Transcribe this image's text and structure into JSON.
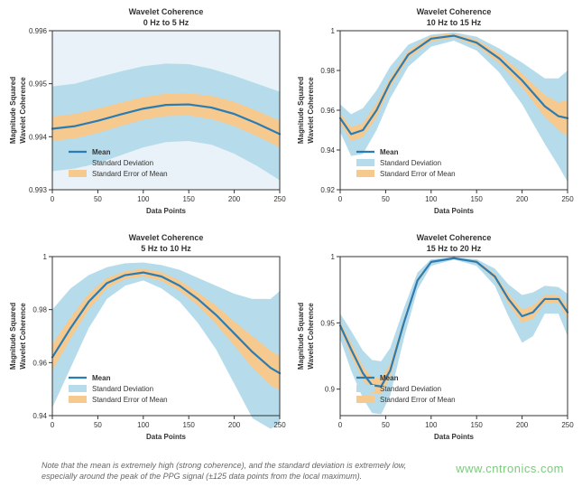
{
  "colors": {
    "plot_bg_tint": "#e8f2f8",
    "plot_bg_white": "#ffffff",
    "mean_line": "#2b7cb3",
    "std_fill": "#b6dceb",
    "sem_fill": "#f6c98f",
    "axis": "#333333",
    "grid": "none",
    "caption_text": "#666666",
    "watermark": "#7ec97e"
  },
  "caption": {
    "line1": "Note that the mean is extremely high (strong coherence), and the standard deviation is extremely low,",
    "line2": "especially around the peak of the PPG signal (±125 data points from the local maximum)."
  },
  "watermark": "www.cntronics.com",
  "common": {
    "xlabel": "Data Points",
    "ylabel_line1": "Magnitude Squared",
    "ylabel_line2": "Wavelet Coherence",
    "xlim": [
      0,
      250
    ],
    "xticks": [
      0,
      50,
      100,
      150,
      200,
      250
    ],
    "legend": {
      "mean": "Mean",
      "std": "Standard Deviation",
      "sem": "Standard Error of Mean"
    },
    "line_width_mean": 2.2,
    "fontsize_title": 9,
    "fontsize_axis_label": 8,
    "fontsize_tick": 8,
    "fontsize_legend": 8
  },
  "panels": [
    {
      "id": "p0_5",
      "title_line1": "Wavelet Coherence",
      "title_line2": "0 Hz to 5 Hz",
      "bg_tint": true,
      "ylim": [
        0.993,
        0.996
      ],
      "yticks": [
        0.993,
        0.994,
        0.995,
        0.996
      ],
      "yticklabels": [
        "0.993",
        "0.994",
        "0.995",
        "0.996"
      ],
      "legend_pos": "lower-inside",
      "x": [
        0,
        25,
        50,
        75,
        100,
        125,
        150,
        175,
        200,
        225,
        250
      ],
      "mean": [
        0.99415,
        0.9942,
        0.9943,
        0.99442,
        0.99453,
        0.9946,
        0.99461,
        0.99455,
        0.99443,
        0.99425,
        0.99405
      ],
      "std_lo": [
        0.99335,
        0.9934,
        0.9935,
        0.99365,
        0.9938,
        0.9939,
        0.99392,
        0.99385,
        0.99368,
        0.99345,
        0.99318
      ],
      "std_hi": [
        0.99495,
        0.995,
        0.99512,
        0.99523,
        0.99533,
        0.99538,
        0.99537,
        0.99528,
        0.99515,
        0.995,
        0.99485
      ],
      "sem_lo": [
        0.99392,
        0.99397,
        0.99407,
        0.9942,
        0.99432,
        0.99439,
        0.9944,
        0.99433,
        0.9942,
        0.99401,
        0.9938
      ],
      "sem_hi": [
        0.99438,
        0.99443,
        0.99453,
        0.99464,
        0.99475,
        0.99481,
        0.99482,
        0.99477,
        0.99466,
        0.99449,
        0.9943
      ]
    },
    {
      "id": "p10_15",
      "title_line1": "Wavelet Coherence",
      "title_line2": "10 Hz to 15 Hz",
      "bg_tint": false,
      "ylim": [
        0.92,
        1.0
      ],
      "yticks": [
        0.92,
        0.94,
        0.96,
        0.98,
        1.0
      ],
      "yticklabels": [
        "0.92",
        "0.94",
        "0.96",
        "0.98",
        "1"
      ],
      "legend_pos": "lower-inside",
      "x": [
        0,
        12,
        25,
        40,
        55,
        75,
        100,
        125,
        150,
        175,
        200,
        225,
        240,
        250
      ],
      "mean": [
        0.956,
        0.948,
        0.95,
        0.96,
        0.974,
        0.988,
        0.996,
        0.9975,
        0.994,
        0.986,
        0.975,
        0.962,
        0.957,
        0.956
      ],
      "std_lo": [
        0.949,
        0.937,
        0.938,
        0.95,
        0.966,
        0.982,
        0.992,
        0.995,
        0.99,
        0.979,
        0.963,
        0.943,
        0.932,
        0.924
      ],
      "std_hi": [
        0.963,
        0.958,
        0.961,
        0.97,
        0.982,
        0.993,
        0.998,
        0.9992,
        0.997,
        0.991,
        0.984,
        0.976,
        0.976,
        0.98
      ],
      "sem_lo": [
        0.9535,
        0.9445,
        0.9465,
        0.9565,
        0.9715,
        0.986,
        0.9945,
        0.9965,
        0.9925,
        0.9835,
        0.9715,
        0.9565,
        0.95,
        0.947
      ],
      "sem_hi": [
        0.9585,
        0.9515,
        0.9535,
        0.9635,
        0.9765,
        0.99,
        0.9975,
        0.9985,
        0.9955,
        0.9885,
        0.9785,
        0.9675,
        0.964,
        0.965
      ]
    },
    {
      "id": "p5_10",
      "title_line1": "Wavelet Coherence",
      "title_line2": "5 Hz to 10 Hz",
      "bg_tint": false,
      "ylim": [
        0.94,
        1.0
      ],
      "yticks": [
        0.94,
        0.96,
        0.98,
        1.0
      ],
      "yticklabels": [
        "0.94",
        "0.96",
        "0.98",
        "1"
      ],
      "legend_pos": "lower-inside",
      "x": [
        0,
        20,
        40,
        60,
        80,
        100,
        120,
        140,
        160,
        180,
        200,
        220,
        240,
        250
      ],
      "mean": [
        0.962,
        0.973,
        0.983,
        0.99,
        0.993,
        0.994,
        0.9925,
        0.989,
        0.984,
        0.978,
        0.971,
        0.964,
        0.958,
        0.956
      ],
      "std_lo": [
        0.943,
        0.958,
        0.973,
        0.984,
        0.989,
        0.991,
        0.988,
        0.983,
        0.975,
        0.965,
        0.952,
        0.939,
        0.935,
        0.937
      ],
      "std_hi": [
        0.98,
        0.988,
        0.993,
        0.996,
        0.9975,
        0.9978,
        0.9968,
        0.995,
        0.992,
        0.989,
        0.986,
        0.984,
        0.984,
        0.987
      ],
      "sem_lo": [
        0.957,
        0.969,
        0.98,
        0.988,
        0.9915,
        0.9925,
        0.9908,
        0.987,
        0.9815,
        0.9745,
        0.9665,
        0.958,
        0.9515,
        0.9495
      ],
      "sem_hi": [
        0.967,
        0.977,
        0.986,
        0.992,
        0.9945,
        0.9955,
        0.9942,
        0.991,
        0.9865,
        0.9815,
        0.9755,
        0.97,
        0.9645,
        0.9625
      ]
    },
    {
      "id": "p15_20",
      "title_line1": "Wavelet Coherence",
      "title_line2": "15 Hz to 20 Hz",
      "bg_tint": false,
      "ylim": [
        0.88,
        1.0
      ],
      "yticks": [
        0.9,
        0.95,
        1.0
      ],
      "yticklabels": [
        "0.9",
        "0.95",
        "1"
      ],
      "legend_pos": "lower-inside",
      "x": [
        0,
        12,
        25,
        35,
        45,
        55,
        70,
        85,
        100,
        125,
        150,
        170,
        185,
        200,
        212,
        225,
        240,
        250
      ],
      "mean": [
        0.948,
        0.93,
        0.912,
        0.903,
        0.902,
        0.914,
        0.95,
        0.982,
        0.996,
        0.9988,
        0.996,
        0.985,
        0.968,
        0.955,
        0.958,
        0.968,
        0.968,
        0.958
      ],
      "std_lo": [
        0.938,
        0.914,
        0.893,
        0.882,
        0.881,
        0.895,
        0.938,
        0.975,
        0.993,
        0.9978,
        0.993,
        0.978,
        0.955,
        0.935,
        0.94,
        0.957,
        0.957,
        0.94
      ],
      "std_hi": [
        0.957,
        0.944,
        0.929,
        0.922,
        0.921,
        0.931,
        0.961,
        0.988,
        0.998,
        0.9995,
        0.998,
        0.991,
        0.979,
        0.971,
        0.973,
        0.978,
        0.977,
        0.972
      ],
      "sem_lo": [
        0.945,
        0.925,
        0.907,
        0.897,
        0.896,
        0.909,
        0.947,
        0.98,
        0.9952,
        0.9985,
        0.995,
        0.983,
        0.964,
        0.95,
        0.953,
        0.965,
        0.965,
        0.953
      ],
      "sem_hi": [
        0.951,
        0.935,
        0.917,
        0.909,
        0.908,
        0.919,
        0.953,
        0.984,
        0.9968,
        0.9991,
        0.997,
        0.987,
        0.972,
        0.96,
        0.963,
        0.971,
        0.971,
        0.963
      ]
    }
  ]
}
